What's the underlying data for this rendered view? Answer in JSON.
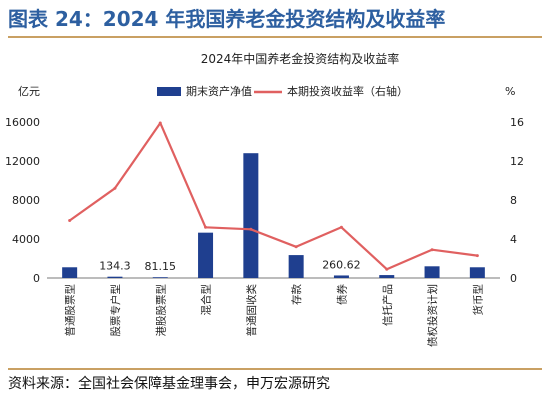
{
  "figure_label": "图表 24：2024 年我国养老金投资结构及收益率",
  "source": "资料来源：全国社会保障基金理事会，申万宏源研究",
  "colors": {
    "title": "#2d5fa0",
    "rule": "#c9a063",
    "bar": "#1f3f8f",
    "line": "#e06060"
  },
  "chart_data": {
    "type": "bar",
    "title": "2024年中国养老金投资结构及收益率",
    "left_unit": "亿元",
    "right_unit": "%",
    "categories": [
      "普通股票型",
      "股票专户型",
      "港股股票型",
      "混合型",
      "普通固收类",
      "存款",
      "债券",
      "信托产品",
      "债权投资计划",
      "货币型"
    ],
    "series": [
      {
        "name": "期末资产净值",
        "type": "bar",
        "axis": "left",
        "values": [
          1100,
          134.3,
          81.15,
          4650,
          12800,
          2350,
          260.62,
          300,
          1200,
          1100
        ]
      },
      {
        "name": "本期投资收益率（右轴）",
        "type": "line",
        "axis": "right",
        "values": [
          5.9,
          9.2,
          15.9,
          5.2,
          5.0,
          3.2,
          5.2,
          0.9,
          2.9,
          2.3
        ]
      }
    ],
    "data_labels": [
      {
        "index": 1,
        "text": "134.3"
      },
      {
        "index": 2,
        "text": "81.15"
      },
      {
        "index": 6,
        "text": "260.62"
      }
    ],
    "y_left": {
      "min": 0,
      "max": 16000,
      "ticks": [
        0,
        4000,
        8000,
        12000,
        16000
      ]
    },
    "y_right": {
      "min": 0,
      "max": 16,
      "ticks": [
        0,
        4,
        8,
        12,
        16
      ]
    },
    "grid": false,
    "legend_position": "top"
  }
}
